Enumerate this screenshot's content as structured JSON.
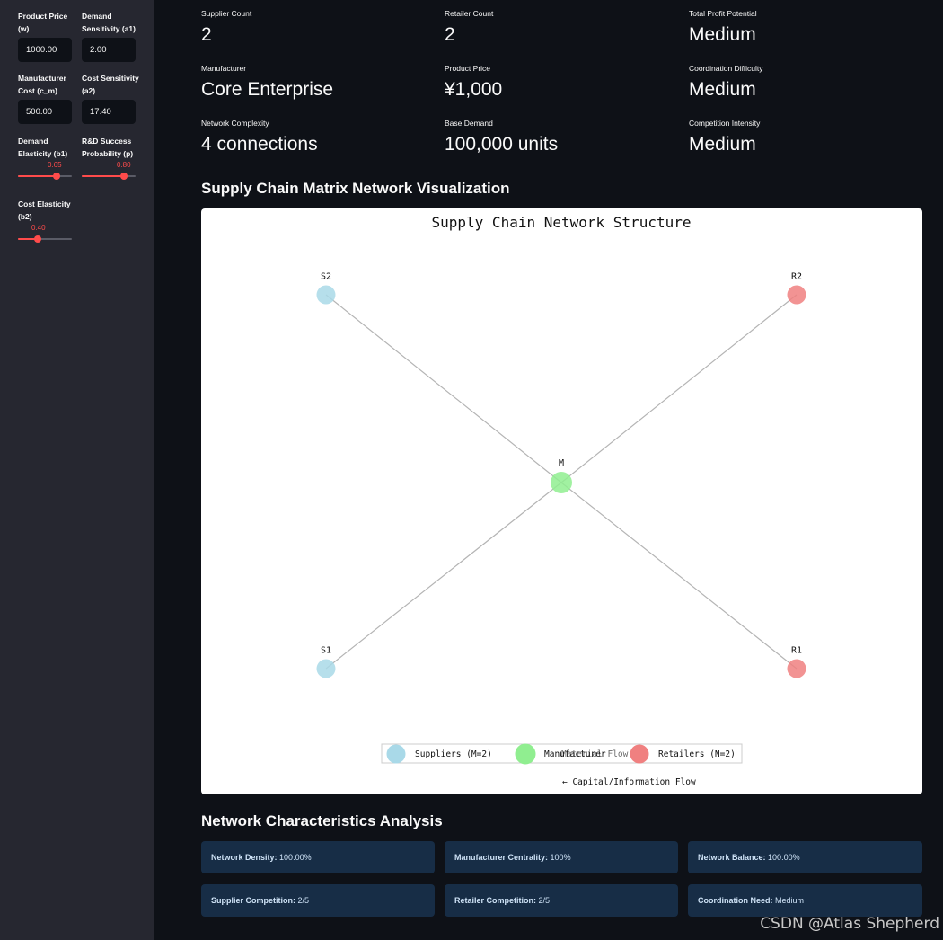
{
  "sidebar": {
    "product_price": {
      "label": "Product Price (w)",
      "value": "1000.00"
    },
    "demand_sensitivity": {
      "label": "Demand Sensitivity (a1)",
      "value": "2.00"
    },
    "manufacturer_cost": {
      "label": "Manufacturer Cost (c_m)",
      "value": "500.00"
    },
    "cost_sensitivity": {
      "label": "Cost Sensitivity (a2)",
      "value": "17.40"
    },
    "demand_elasticity": {
      "label": "Demand Elasticity (b1)",
      "value": "0.65",
      "fraction": 0.72
    },
    "rd_success": {
      "label": "R&D Success Probability (p)",
      "value": "0.80",
      "fraction": 0.78
    },
    "cost_elasticity": {
      "label": "Cost Elasticity (b2)",
      "value": "0.40",
      "fraction": 0.37
    },
    "accent_color": "#ff4b4b"
  },
  "metrics": [
    {
      "label": "Supplier Count",
      "value": "2"
    },
    {
      "label": "Retailer Count",
      "value": "2"
    },
    {
      "label": "Total Profit Potential",
      "value": "Medium"
    },
    {
      "label": "Manufacturer",
      "value": "Core Enterprise"
    },
    {
      "label": "Product Price",
      "value": "¥1,000"
    },
    {
      "label": "Coordination Difficulty",
      "value": "Medium"
    },
    {
      "label": "Network Complexity",
      "value": "4 connections"
    },
    {
      "label": "Base Demand",
      "value": "100,000 units"
    },
    {
      "label": "Competition Intensity",
      "value": "Medium"
    }
  ],
  "section_titles": {
    "network": "Supply Chain Matrix Network Visualization",
    "analysis": "Network Characteristics Analysis"
  },
  "chart": {
    "title": "Supply Chain Network Structure",
    "nodes": [
      {
        "id": "S2",
        "role": "supplier"
      },
      {
        "id": "R2",
        "role": "retailer"
      },
      {
        "id": "M",
        "role": "manufacturer"
      },
      {
        "id": "S1",
        "role": "supplier"
      },
      {
        "id": "R1",
        "role": "retailer"
      }
    ],
    "edges": [
      [
        "S1",
        "M"
      ],
      [
        "S2",
        "M"
      ],
      [
        "M",
        "R1"
      ],
      [
        "M",
        "R2"
      ]
    ],
    "legend": {
      "suppliers": "Suppliers (M=2)",
      "manufacturer": "Manufacturer",
      "retailers": "Retailers (N=2)",
      "material_flow": "Material Flow",
      "capital_flow": "← Capital/Information Flow"
    },
    "colors": {
      "supplier": "#a9d9e8",
      "manufacturer": "#90ee90",
      "retailer": "#f08080",
      "edge": "#b4b4b4"
    }
  },
  "chart_data": {
    "type": "network",
    "title": "Supply Chain Network Structure",
    "nodes": [
      "S1",
      "S2",
      "M",
      "R1",
      "R2"
    ],
    "edges": [
      [
        "S1",
        "M"
      ],
      [
        "S2",
        "M"
      ],
      [
        "M",
        "R1"
      ],
      [
        "M",
        "R2"
      ]
    ],
    "legend": [
      "Suppliers (M=2)",
      "Manufacturer",
      "Retailers (N=2)"
    ],
    "annotations": [
      "Material Flow",
      "← Capital/Information Flow"
    ]
  },
  "analysis": [
    {
      "key": "Network Density:",
      "value": "100.00%"
    },
    {
      "key": "Manufacturer Centrality:",
      "value": "100%"
    },
    {
      "key": "Network Balance:",
      "value": "100.00%"
    },
    {
      "key": "Supplier Competition:",
      "value": "2/5"
    },
    {
      "key": "Retailer Competition:",
      "value": "2/5"
    },
    {
      "key": "Coordination Need:",
      "value": "Medium"
    }
  ],
  "watermark": "CSDN @Atlas Shepherd"
}
